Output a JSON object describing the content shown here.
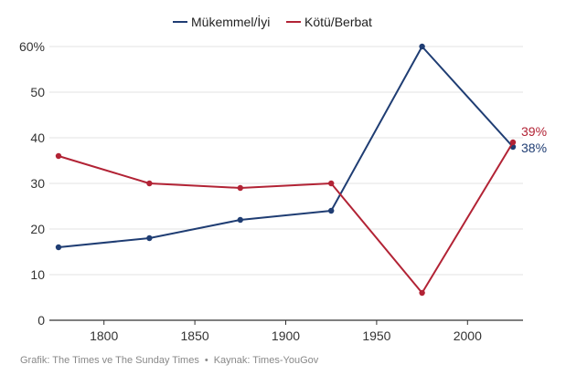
{
  "chart_data": {
    "type": "line",
    "x": [
      1775,
      1825,
      1875,
      1925,
      1975,
      2025
    ],
    "series": [
      {
        "name": "Mükemmel/İyi",
        "color": "#1f3d73",
        "values": [
          16,
          18,
          22,
          24,
          60,
          38
        ],
        "end_label": "38%"
      },
      {
        "name": "Kötü/Berbat",
        "color": "#b22335",
        "values": [
          36,
          30,
          29,
          30,
          6,
          39
        ],
        "end_label": "39%"
      }
    ],
    "xlim": [
      1775,
      2025
    ],
    "ylim": [
      0,
      60
    ],
    "x_ticks": [
      1800,
      1850,
      1900,
      1950,
      2000
    ],
    "y_ticks": [
      0,
      10,
      20,
      30,
      40,
      50,
      60
    ],
    "y_tick_labels": [
      "0",
      "10",
      "20",
      "30",
      "40",
      "50",
      "60%"
    ],
    "grid": "horizontal",
    "legend": "top-center"
  },
  "footer": {
    "credit": "Grafik: The Times ve The Sunday Times",
    "separator": "•",
    "source": "Kaynak: Times-YouGov"
  }
}
